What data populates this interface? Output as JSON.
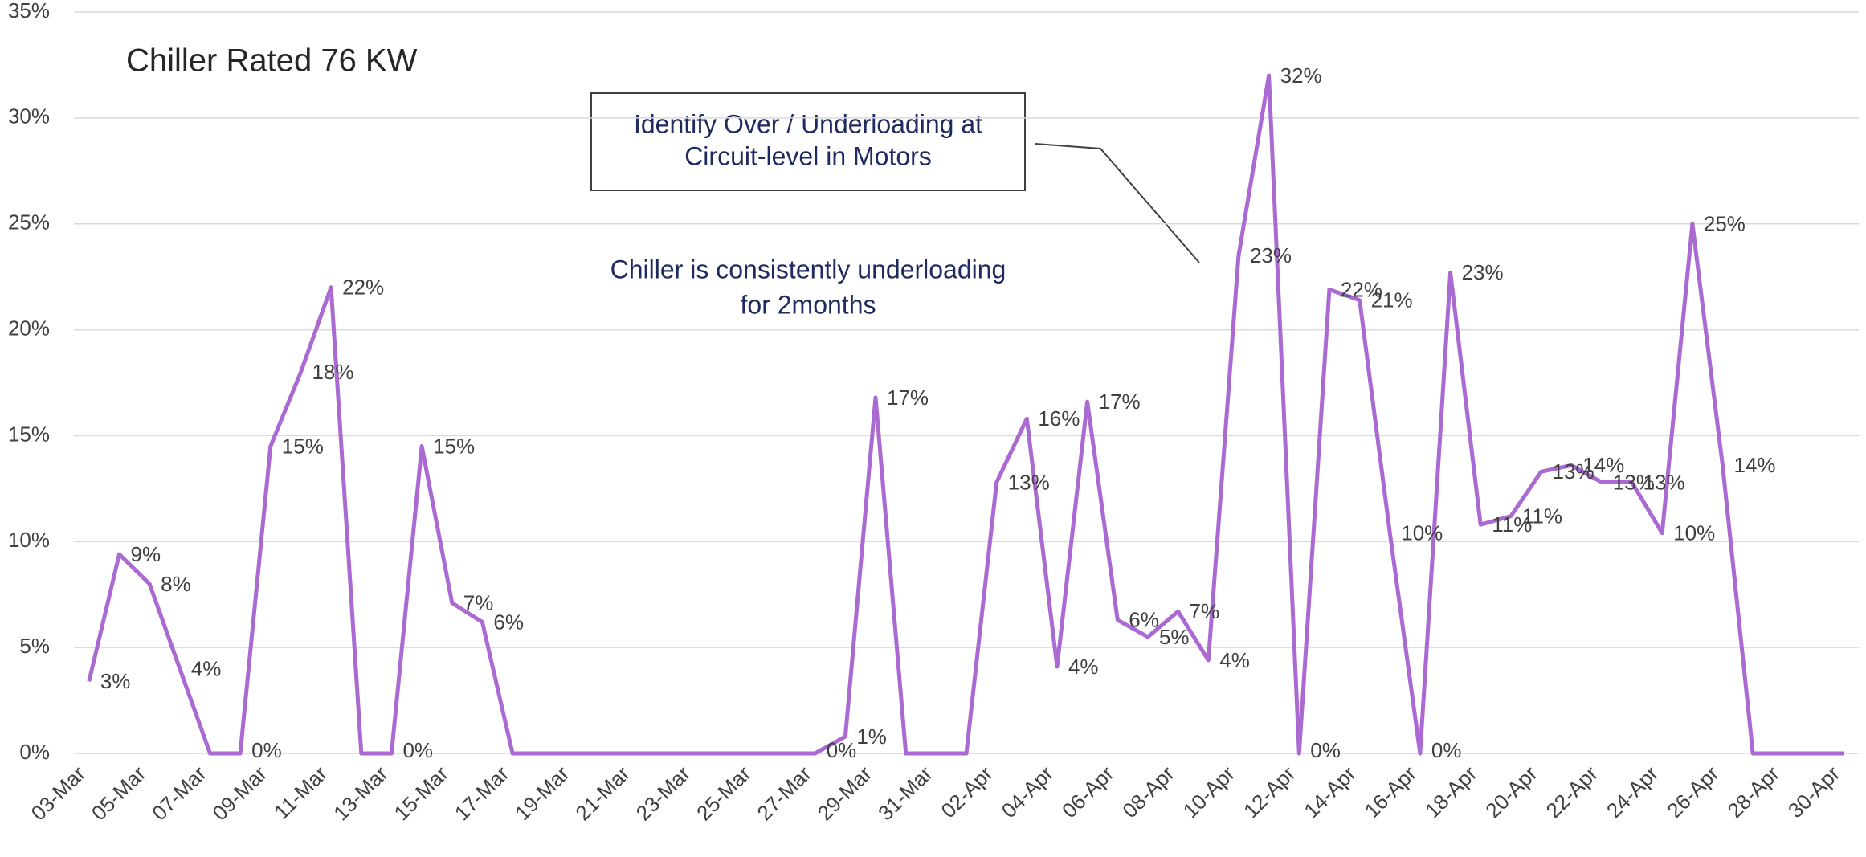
{
  "chart_data": {
    "type": "line",
    "title": "Chiller Rated 76 KW",
    "annotations": {
      "callout": [
        "Identify Over / Underloading at",
        "Circuit-level in Motors"
      ],
      "note": [
        "Chiller is consistently underloading",
        "for 2months"
      ]
    },
    "categories": [
      "03-Mar",
      null,
      "05-Mar",
      null,
      "07-Mar",
      null,
      "09-Mar",
      null,
      "11-Mar",
      null,
      "13-Mar",
      null,
      "15-Mar",
      null,
      "17-Mar",
      null,
      "19-Mar",
      null,
      "21-Mar",
      null,
      "23-Mar",
      null,
      "25-Mar",
      null,
      "27-Mar",
      null,
      "29-Mar",
      null,
      "31-Mar",
      null,
      "02-Apr",
      null,
      "04-Apr",
      null,
      "06-Apr",
      null,
      "08-Apr",
      null,
      "10-Apr",
      null,
      "12-Apr",
      null,
      "14-Apr",
      null,
      "16-Apr",
      null,
      "18-Apr",
      null,
      "20-Apr",
      null,
      "22-Apr",
      null,
      "24-Apr",
      null,
      "26-Apr",
      null,
      "28-Apr",
      null,
      "30-Apr"
    ],
    "series": [
      {
        "color": "#aa6ad2",
        "values": [
          3.4,
          9.4,
          8,
          4,
          0,
          0,
          14.5,
          18,
          22,
          0,
          0,
          14.5,
          7.1,
          6.2,
          0,
          0,
          0,
          0,
          0,
          0,
          0,
          0,
          0,
          0,
          0,
          0.8,
          16.8,
          0,
          0,
          0,
          12.8,
          15.8,
          4.1,
          16.6,
          6.3,
          5.5,
          6.7,
          4.4,
          23.5,
          32,
          0,
          21.9,
          21.4,
          10.4,
          0,
          22.7,
          10.8,
          11.2,
          13.3,
          13.6,
          12.8,
          12.8,
          10.4,
          25,
          13.6,
          0,
          0,
          0,
          0
        ],
        "value_labels": [
          "3%",
          "9%",
          "8%",
          "4%",
          null,
          "0%",
          "15%",
          "18%",
          "22%",
          null,
          "0%",
          "15%",
          "7%",
          "6%",
          null,
          null,
          null,
          null,
          null,
          null,
          null,
          null,
          null,
          null,
          "0%",
          "1%",
          "17%",
          null,
          null,
          null,
          "13%",
          "16%",
          "4%",
          "17%",
          "6%",
          "5%",
          "7%",
          "4%",
          "23%",
          "32%",
          "0%",
          "22%",
          "21%",
          "10%",
          "0%",
          "23%",
          "11%",
          "11%",
          "13%",
          "14%",
          "13%",
          "13%",
          "10%",
          "25%",
          "14%",
          null,
          null,
          null,
          null
        ]
      }
    ],
    "ylim": [
      0,
      35
    ],
    "yticks": [
      {
        "value": 0,
        "label": "0%"
      },
      {
        "value": 5,
        "label": "5%"
      },
      {
        "value": 10,
        "label": "10%"
      },
      {
        "value": 15,
        "label": "15%"
      },
      {
        "value": 20,
        "label": "20%"
      },
      {
        "value": 25,
        "label": "25%"
      },
      {
        "value": 30,
        "label": "30%"
      },
      {
        "value": 35,
        "label": "35%"
      }
    ],
    "grid": true
  }
}
